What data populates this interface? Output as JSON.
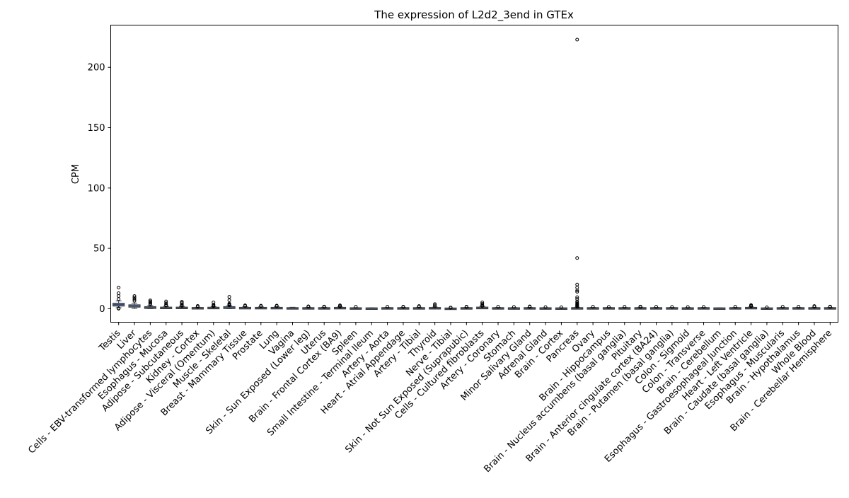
{
  "chart_data": {
    "type": "box",
    "title": "The expression of L2d2_3end in GTEx",
    "xlabel": "",
    "ylabel": "CPM",
    "ylim": [
      -11.2,
      235
    ],
    "yticks": [
      0,
      50,
      100,
      150,
      200
    ],
    "grid": false,
    "legend": "none",
    "box_color": "#4c72b0",
    "categories": [
      "Testis",
      "Liver",
      "Cells - EBV-transformed lymphocytes",
      "Esophagus - Mucosa",
      "Adipose - Subcutaneous",
      "Kidney - Cortex",
      "Adipose - Visceral (Omentum)",
      "Muscle - Skeletal",
      "Breast - Mammary Tissue",
      "Prostate",
      "Lung",
      "Vagina",
      "Skin - Sun Exposed (Lower leg)",
      "Uterus",
      "Brain - Frontal Cortex (BA9)",
      "Spleen",
      "Small Intestine - Terminal Ileum",
      "Artery - Aorta",
      "Heart - Atrial Appendage",
      "Artery - Tibial",
      "Thyroid",
      "Nerve - Tibial",
      "Skin - Not Sun Exposed (Suprapubic)",
      "Cells - Cultured fibroblasts",
      "Artery - Coronary",
      "Stomach",
      "Minor Salivary Gland",
      "Adrenal Gland",
      "Brain - Cortex",
      "Pancreas",
      "Ovary",
      "Brain - Hippocampus",
      "Brain - Nucleus accumbens (basal ganglia)",
      "Pituitary",
      "Brain - Anterior cingulate cortex (BA24)",
      "Brain - Putamen (basal ganglia)",
      "Colon - Sigmoid",
      "Colon - Transverse",
      "Brain - Cerebellum",
      "Esophagus - Gastroesophageal Junction",
      "Heart - Left Ventricle",
      "Brain - Caudate (basal ganglia)",
      "Esophagus - Muscularis",
      "Brain - Hypothalamus",
      "Whole Blood",
      "Brain - Cerebellar Hemisphere"
    ],
    "series": [
      {
        "q1": 2.5,
        "median": 3.3,
        "q3": 4.2,
        "whisker_low": 0.8,
        "whisker_high": 6.5,
        "outliers": [
          17.5,
          12.8,
          10.5,
          8.0,
          0.3,
          0.0
        ]
      },
      {
        "q1": 1.6,
        "median": 2.2,
        "q3": 2.9,
        "whisker_low": 0.2,
        "whisker_high": 4.6,
        "outliers": [
          10.5,
          9.2,
          7.8,
          6.5
        ]
      },
      {
        "q1": 0.5,
        "median": 0.9,
        "q3": 1.4,
        "whisker_low": 0.0,
        "whisker_high": 2.6,
        "outliers": [
          6.9,
          6.0,
          5.1,
          4.2,
          3.5
        ]
      },
      {
        "q1": 0.3,
        "median": 0.6,
        "q3": 1.0,
        "whisker_low": 0.0,
        "whisker_high": 2.0,
        "outliers": [
          6.0,
          4.5,
          3.2,
          2.6
        ]
      },
      {
        "q1": 0.3,
        "median": 0.6,
        "q3": 1.0,
        "whisker_low": 0.0,
        "whisker_high": 2.0,
        "outliers": [
          5.8,
          4.8,
          3.7,
          2.8,
          2.3
        ]
      },
      {
        "q1": 0.2,
        "median": 0.4,
        "q3": 0.7,
        "whisker_low": 0.0,
        "whisker_high": 1.2,
        "outliers": [
          2.3,
          1.6
        ]
      },
      {
        "q1": 0.2,
        "median": 0.5,
        "q3": 0.9,
        "whisker_low": 0.0,
        "whisker_high": 1.7,
        "outliers": [
          5.2,
          3.3,
          2.6,
          2.0
        ]
      },
      {
        "q1": 0.4,
        "median": 0.8,
        "q3": 1.4,
        "whisker_low": 0.0,
        "whisker_high": 2.6,
        "outliers": [
          9.8,
          7.0,
          4.2,
          3.6,
          3.1,
          2.8
        ]
      },
      {
        "q1": 0.2,
        "median": 0.4,
        "q3": 0.8,
        "whisker_low": 0.0,
        "whisker_high": 1.6,
        "outliers": [
          2.8,
          2.2
        ]
      },
      {
        "q1": 0.2,
        "median": 0.4,
        "q3": 0.8,
        "whisker_low": 0.0,
        "whisker_high": 1.5,
        "outliers": [
          2.5,
          2.0
        ]
      },
      {
        "q1": 0.2,
        "median": 0.5,
        "q3": 0.8,
        "whisker_low": 0.0,
        "whisker_high": 1.6,
        "outliers": [
          2.6,
          2.1
        ]
      },
      {
        "q1": 0.1,
        "median": 0.3,
        "q3": 0.6,
        "whisker_low": 0.0,
        "whisker_high": 1.2,
        "outliers": []
      },
      {
        "q1": 0.1,
        "median": 0.3,
        "q3": 0.6,
        "whisker_low": 0.0,
        "whisker_high": 1.2,
        "outliers": [
          2.0,
          1.6
        ]
      },
      {
        "q1": 0.1,
        "median": 0.3,
        "q3": 0.6,
        "whisker_low": 0.0,
        "whisker_high": 1.2,
        "outliers": [
          1.8,
          1.5
        ]
      },
      {
        "q1": 0.2,
        "median": 0.4,
        "q3": 0.8,
        "whisker_low": 0.0,
        "whisker_high": 1.5,
        "outliers": [
          2.8,
          2.2,
          1.8
        ]
      },
      {
        "q1": 0.1,
        "median": 0.2,
        "q3": 0.5,
        "whisker_low": 0.0,
        "whisker_high": 0.9,
        "outliers": [
          1.6
        ]
      },
      {
        "q1": 0.1,
        "median": 0.2,
        "q3": 0.4,
        "whisker_low": 0.0,
        "whisker_high": 0.8,
        "outliers": []
      },
      {
        "q1": 0.1,
        "median": 0.3,
        "q3": 0.6,
        "whisker_low": 0.0,
        "whisker_high": 1.1,
        "outliers": [
          1.6
        ]
      },
      {
        "q1": 0.1,
        "median": 0.3,
        "q3": 0.6,
        "whisker_low": 0.0,
        "whisker_high": 1.1,
        "outliers": [
          1.7,
          1.4
        ]
      },
      {
        "q1": 0.1,
        "median": 0.3,
        "q3": 0.6,
        "whisker_low": 0.0,
        "whisker_high": 1.2,
        "outliers": [
          2.2,
          1.8
        ]
      },
      {
        "q1": 0.1,
        "median": 0.3,
        "q3": 0.7,
        "whisker_low": 0.0,
        "whisker_high": 1.3,
        "outliers": [
          3.8,
          2.8,
          2.0
        ]
      },
      {
        "q1": 0.0,
        "median": 0.1,
        "q3": 0.3,
        "whisker_low": 0.0,
        "whisker_high": 0.6,
        "outliers": [
          1.0,
          0.8
        ]
      },
      {
        "q1": 0.1,
        "median": 0.3,
        "q3": 0.6,
        "whisker_low": 0.0,
        "whisker_high": 1.1,
        "outliers": [
          1.7,
          1.4
        ]
      },
      {
        "q1": 0.2,
        "median": 0.5,
        "q3": 1.0,
        "whisker_low": 0.0,
        "whisker_high": 2.0,
        "outliers": [
          5.2,
          4.0,
          3.0,
          2.5,
          2.2
        ]
      },
      {
        "q1": 0.1,
        "median": 0.3,
        "q3": 0.6,
        "whisker_low": 0.0,
        "whisker_high": 1.1,
        "outliers": [
          1.6
        ]
      },
      {
        "q1": 0.1,
        "median": 0.3,
        "q3": 0.5,
        "whisker_low": 0.0,
        "whisker_high": 1.0,
        "outliers": [
          1.5
        ]
      },
      {
        "q1": 0.1,
        "median": 0.3,
        "q3": 0.6,
        "whisker_low": 0.0,
        "whisker_high": 1.1,
        "outliers": [
          1.9,
          1.5
        ]
      },
      {
        "q1": 0.1,
        "median": 0.2,
        "q3": 0.5,
        "whisker_low": 0.0,
        "whisker_high": 0.9,
        "outliers": [
          1.3
        ]
      },
      {
        "q1": 0.1,
        "median": 0.2,
        "q3": 0.4,
        "whisker_low": 0.0,
        "whisker_high": 0.8,
        "outliers": [
          1.2
        ]
      },
      {
        "q1": 0.1,
        "median": 0.3,
        "q3": 0.6,
        "whisker_low": 0.0,
        "whisker_high": 1.2,
        "outliers": [
          223.0,
          42.0,
          20.0,
          17.5,
          15.0,
          14.0,
          9.5,
          8.0,
          6.0,
          5.0,
          4.2,
          3.5,
          3.0,
          2.5,
          2.0,
          1.7
        ]
      },
      {
        "q1": 0.1,
        "median": 0.3,
        "q3": 0.6,
        "whisker_low": 0.0,
        "whisker_high": 1.1,
        "outliers": [
          1.6
        ]
      },
      {
        "q1": 0.1,
        "median": 0.3,
        "q3": 0.6,
        "whisker_low": 0.0,
        "whisker_high": 1.1,
        "outliers": [
          1.5
        ]
      },
      {
        "q1": 0.1,
        "median": 0.3,
        "q3": 0.6,
        "whisker_low": 0.0,
        "whisker_high": 1.1,
        "outliers": [
          1.6
        ]
      },
      {
        "q1": 0.1,
        "median": 0.3,
        "q3": 0.6,
        "whisker_low": 0.0,
        "whisker_high": 1.2,
        "outliers": [
          1.8,
          1.5
        ]
      },
      {
        "q1": 0.1,
        "median": 0.3,
        "q3": 0.6,
        "whisker_low": 0.0,
        "whisker_high": 1.1,
        "outliers": [
          1.6
        ]
      },
      {
        "q1": 0.1,
        "median": 0.3,
        "q3": 0.6,
        "whisker_low": 0.0,
        "whisker_high": 1.1,
        "outliers": [
          1.5
        ]
      },
      {
        "q1": 0.1,
        "median": 0.3,
        "q3": 0.5,
        "whisker_low": 0.0,
        "whisker_high": 1.0,
        "outliers": [
          1.4
        ]
      },
      {
        "q1": 0.1,
        "median": 0.3,
        "q3": 0.6,
        "whisker_low": 0.0,
        "whisker_high": 1.1,
        "outliers": [
          1.5
        ]
      },
      {
        "q1": 0.1,
        "median": 0.2,
        "q3": 0.4,
        "whisker_low": 0.0,
        "whisker_high": 0.8,
        "outliers": []
      },
      {
        "q1": 0.1,
        "median": 0.3,
        "q3": 0.6,
        "whisker_low": 0.0,
        "whisker_high": 1.1,
        "outliers": [
          1.6
        ]
      },
      {
        "q1": 0.2,
        "median": 0.4,
        "q3": 0.8,
        "whisker_low": 0.0,
        "whisker_high": 1.5,
        "outliers": [
          3.0,
          2.5,
          2.2,
          1.9
        ]
      },
      {
        "q1": 0.1,
        "median": 0.2,
        "q3": 0.4,
        "whisker_low": 0.0,
        "whisker_high": 0.8,
        "outliers": [
          1.1
        ]
      },
      {
        "q1": 0.1,
        "median": 0.3,
        "q3": 0.6,
        "whisker_low": 0.0,
        "whisker_high": 1.1,
        "outliers": [
          1.6
        ]
      },
      {
        "q1": 0.1,
        "median": 0.3,
        "q3": 0.6,
        "whisker_low": 0.0,
        "whisker_high": 1.1,
        "outliers": [
          1.7
        ]
      },
      {
        "q1": 0.1,
        "median": 0.3,
        "q3": 0.6,
        "whisker_low": 0.0,
        "whisker_high": 1.2,
        "outliers": [
          2.2,
          1.8
        ]
      },
      {
        "q1": 0.1,
        "median": 0.3,
        "q3": 0.6,
        "whisker_low": 0.0,
        "whisker_high": 1.1,
        "outliers": [
          1.8,
          1.5
        ]
      }
    ]
  }
}
